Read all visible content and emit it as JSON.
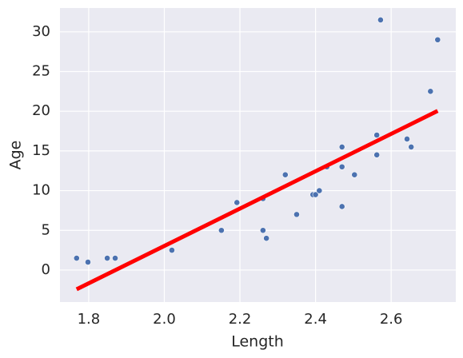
{
  "chart_data": {
    "type": "scatter",
    "x_label": "Length",
    "y_label": "Age",
    "series": [
      {
        "color": "#4c72b0",
        "x": [
          1.768,
          1.798,
          1.849,
          1.87,
          2.02,
          2.151,
          2.192,
          2.261,
          2.261,
          2.27,
          2.32,
          2.35,
          2.393,
          2.4,
          2.41,
          2.43,
          2.47,
          2.47,
          2.47,
          2.503,
          2.562,
          2.562,
          2.572,
          2.642,
          2.653,
          2.704,
          2.723
        ],
        "values": [
          1.5,
          1.0,
          1.5,
          1.5,
          2.5,
          5.0,
          8.5,
          9.0,
          5.0,
          4.0,
          12.0,
          7.0,
          9.5,
          9.5,
          10.0,
          13.0,
          15.5,
          13.0,
          8.0,
          12.0,
          17.0,
          14.5,
          31.5,
          16.5,
          15.5,
          22.5,
          29.0
        ]
      }
    ],
    "fit_line": {
      "color": "#ff0000",
      "x": [
        1.768,
        2.723
      ],
      "values": [
        -2.42,
        20.04
      ]
    },
    "xlim": [
      1.724,
      2.771
    ],
    "ylim": [
      -4.03,
      33.0
    ],
    "xticks": [
      1.8,
      {
        "value": 2,
        "label": "2.0"
      },
      2.2,
      2.4,
      2.6
    ],
    "yticks": [
      0,
      5,
      10,
      15,
      20,
      25,
      30
    ],
    "grid": true,
    "background": "#eaeaf2"
  }
}
